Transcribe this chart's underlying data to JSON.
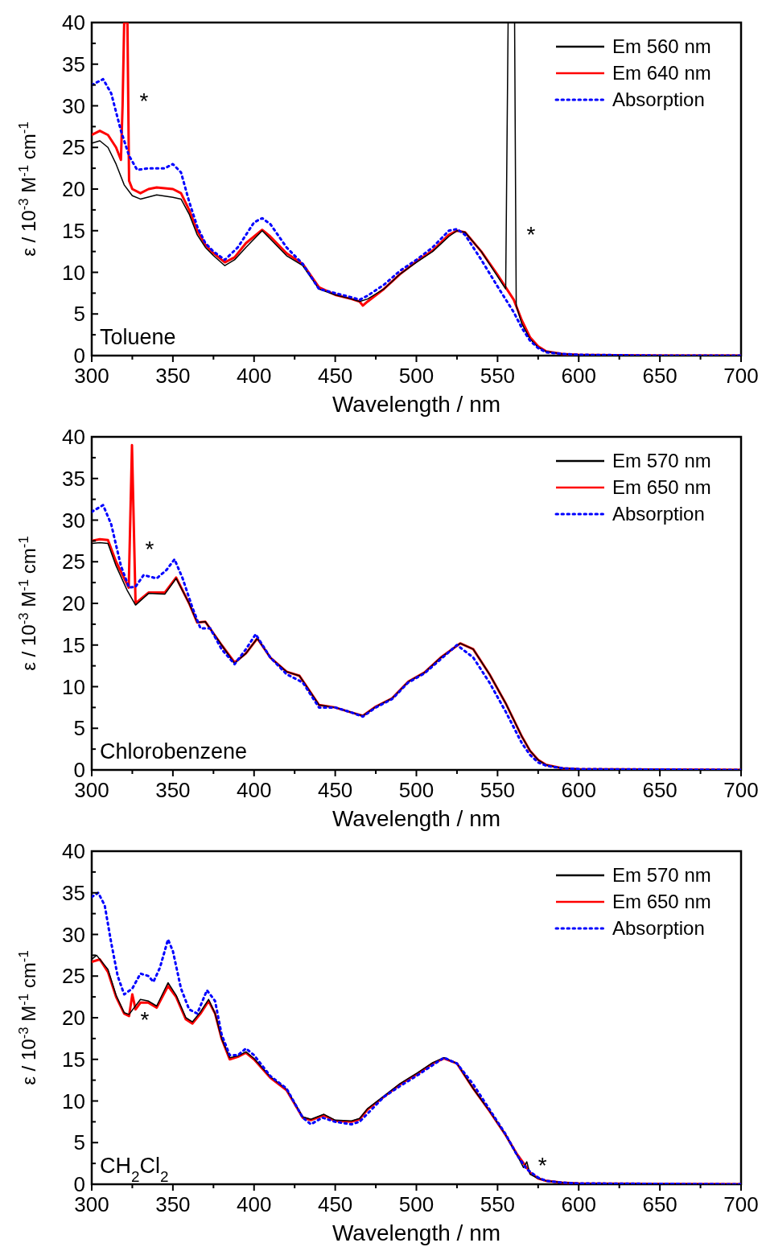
{
  "chart_data": [
    {
      "type": "line",
      "xlabel": "Wavelength / nm",
      "ylabel": "ε / 10$^{-3}$ M$^{-1}$ cm$^{-1}$",
      "xlim": [
        300,
        700
      ],
      "ylim": [
        0,
        40
      ],
      "xticks": [
        300,
        {
          "value": 325,
          "label": null
        },
        350,
        {
          "value": 375,
          "label": null
        },
        400,
        {
          "value": 425,
          "label": null
        },
        450,
        {
          "value": 475,
          "label": null
        },
        500,
        {
          "value": 525,
          "label": null
        },
        550,
        {
          "value": 575,
          "label": null
        },
        600,
        {
          "value": 625,
          "label": null
        },
        650,
        {
          "value": 675,
          "label": null
        },
        700
      ],
      "yticks": [
        0,
        {
          "value": 2.5,
          "label": null
        },
        5,
        {
          "value": 7.5,
          "label": null
        },
        10,
        {
          "value": 12.5,
          "label": null
        },
        15,
        {
          "value": 17.5,
          "label": null
        },
        20,
        {
          "value": 22.5,
          "label": null
        },
        25,
        {
          "value": 27.5,
          "label": null
        },
        30,
        {
          "value": 32.5,
          "label": null
        },
        35,
        {
          "value": 37.5,
          "label": null
        },
        40
      ],
      "legend": "top right",
      "marker": "none",
      "grid": false,
      "annotations": [
        "Toluene",
        {
          "text": "*",
          "x": 322.5,
          "y": 31
        },
        {
          "text": "*",
          "x": 561,
          "y": 15
        }
      ],
      "series": [
        {
          "name": "Em 560 nm",
          "color": "#000000",
          "line_style": "solid",
          "x": [
            300,
            305,
            310,
            315,
            320,
            325,
            330,
            340,
            350,
            355,
            360,
            365,
            370,
            375,
            382,
            388,
            395,
            405,
            410,
            420,
            430,
            440,
            450,
            460,
            465,
            470,
            480,
            490,
            500,
            510,
            520,
            525,
            530,
            540,
            550,
            555,
            556.5,
            560.5,
            561.5,
            565,
            570,
            575,
            580,
            590,
            600,
            650,
            700
          ],
          "values": [
            25.5,
            25.8,
            25,
            23,
            20.5,
            19.2,
            18.8,
            19.3,
            19,
            18.8,
            17,
            14.5,
            13,
            12,
            10.8,
            11.5,
            13,
            15,
            14,
            12,
            10.8,
            8,
            7.3,
            6.8,
            6.5,
            6.8,
            8,
            9.8,
            11.2,
            12.5,
            14.3,
            15,
            14.8,
            12.5,
            9.5,
            8,
            40,
            40,
            6,
            3.8,
            2,
            1,
            0.5,
            0.2,
            0.1,
            0,
            0
          ]
        },
        {
          "name": "Em 640 nm",
          "color": "#ff0000",
          "line_style": "solid",
          "x": [
            300,
            305,
            310,
            315,
            318,
            319,
            320,
            322,
            323,
            325,
            330,
            335,
            340,
            350,
            355,
            360,
            365,
            370,
            375,
            382,
            388,
            395,
            405,
            410,
            420,
            430,
            440,
            450,
            460,
            465,
            467,
            470,
            480,
            490,
            500,
            510,
            520,
            525,
            530,
            540,
            550,
            560,
            565,
            570,
            575,
            580,
            590,
            600,
            650,
            700
          ],
          "values": [
            26.5,
            27,
            26.5,
            25,
            23.5,
            30,
            40,
            40,
            21,
            20,
            19.5,
            20,
            20.2,
            20,
            19.5,
            17.5,
            15,
            13.3,
            12.3,
            11.2,
            11.8,
            13.5,
            15.1,
            14.3,
            12.3,
            11,
            8.2,
            7.3,
            6.8,
            6.5,
            6,
            6.5,
            8,
            9.8,
            11.3,
            12.6,
            14.5,
            15,
            14.8,
            12.5,
            9.7,
            6.7,
            4.2,
            2.2,
            1.1,
            0.5,
            0.2,
            0.1,
            0,
            0
          ]
        },
        {
          "name": "Absorption",
          "color": "#0000ff",
          "line_style": "dotted",
          "x": [
            300,
            307,
            312,
            318,
            323,
            328,
            335,
            345,
            350,
            355,
            360,
            365,
            370,
            375,
            382,
            390,
            400,
            405,
            410,
            420,
            430,
            440,
            450,
            460,
            465,
            470,
            480,
            490,
            500,
            510,
            520,
            525,
            530,
            540,
            550,
            560,
            565,
            570,
            575,
            580,
            590,
            600,
            650,
            700
          ],
          "values": [
            32.5,
            33.2,
            31.5,
            27,
            24,
            22.3,
            22.5,
            22.5,
            23,
            22,
            18.5,
            15.5,
            13.5,
            12.5,
            11.5,
            13,
            16,
            16.5,
            15.8,
            13,
            11,
            8,
            7.5,
            7,
            6.7,
            7.2,
            8.5,
            10.2,
            11.5,
            13,
            15,
            15.2,
            14.5,
            11.5,
            8.3,
            5.2,
            3.3,
            1.8,
            0.9,
            0.4,
            0.2,
            0.1,
            0,
            0
          ]
        }
      ]
    },
    {
      "type": "line",
      "xlabel": "Wavelength / nm",
      "ylabel": "ε / 10$^{-3}$ M$^{-1}$ cm$^{-1}$",
      "xlim": [
        300,
        700
      ],
      "ylim": [
        0,
        40
      ],
      "xticks": [
        300,
        {
          "value": 325,
          "label": null
        },
        350,
        {
          "value": 375,
          "label": null
        },
        400,
        {
          "value": 425,
          "label": null
        },
        450,
        {
          "value": 475,
          "label": null
        },
        500,
        {
          "value": 525,
          "label": null
        },
        550,
        {
          "value": 575,
          "label": null
        },
        600,
        {
          "value": 625,
          "label": null
        },
        650,
        {
          "value": 675,
          "label": null
        },
        700
      ],
      "yticks": [
        0,
        {
          "value": 2.5,
          "label": null
        },
        5,
        {
          "value": 7.5,
          "label": null
        },
        10,
        {
          "value": 12.5,
          "label": null
        },
        15,
        {
          "value": 17.5,
          "label": null
        },
        20,
        {
          "value": 22.5,
          "label": null
        },
        25,
        {
          "value": 27.5,
          "label": null
        },
        30,
        {
          "value": 32.5,
          "label": null
        },
        35,
        {
          "value": 37.5,
          "label": null
        },
        40
      ],
      "legend": "top right",
      "marker": "none",
      "grid": false,
      "annotations": [
        "Chlorobenzene",
        {
          "text": "*",
          "x": 326,
          "y": 27
        }
      ],
      "series": [
        {
          "name": "Em 570 nm",
          "color": "#000000",
          "line_style": "solid",
          "x": [
            300,
            305,
            310,
            315,
            322,
            327,
            335,
            345,
            352,
            360,
            365,
            370,
            380,
            388,
            395,
            402,
            410,
            420,
            428,
            440,
            450,
            460,
            467,
            475,
            485,
            495,
            505,
            515,
            527,
            535,
            545,
            555,
            565,
            570,
            575,
            580,
            590,
            600,
            700
          ],
          "values": [
            27.2,
            27.3,
            27.2,
            24.5,
            21.5,
            19.8,
            21.2,
            21.1,
            23,
            20,
            17.7,
            17.8,
            15,
            12.8,
            14,
            15.8,
            13.5,
            11.8,
            11.3,
            7.8,
            7.5,
            6.9,
            6.5,
            7.6,
            8.6,
            10.6,
            11.7,
            13.5,
            15.2,
            14.5,
            11.5,
            8,
            4,
            2.3,
            1.2,
            0.6,
            0.2,
            0.1,
            0
          ]
        },
        {
          "name": "Em 650 nm",
          "color": "#ff0000",
          "line_style": "solid",
          "x": [
            300,
            305,
            310,
            315,
            322.8,
            324.8,
            327,
            335,
            345,
            352,
            360,
            365,
            370,
            380,
            388,
            395,
            402,
            410,
            420,
            428,
            440,
            450,
            460,
            467,
            475,
            485,
            495,
            505,
            515,
            527,
            535,
            545,
            555,
            565,
            570,
            575,
            580,
            590,
            600,
            700
          ],
          "values": [
            27.5,
            27.7,
            27.6,
            25,
            21.9,
            39,
            20,
            21.3,
            21.3,
            23.1,
            20,
            17.7,
            17.8,
            15,
            12.9,
            14,
            15.8,
            13.5,
            11.8,
            11.3,
            7.8,
            7.5,
            6.9,
            6.5,
            7.6,
            8.6,
            10.6,
            11.7,
            13.5,
            15.2,
            14.5,
            11.5,
            8,
            4,
            2.3,
            1.2,
            0.6,
            0.2,
            0.1,
            0
          ]
        },
        {
          "name": "Absorption",
          "color": "#0000ff",
          "line_style": "dotted",
          "x": [
            300,
            307,
            312,
            318,
            323,
            327,
            332,
            340,
            346,
            351,
            356,
            362,
            367,
            373,
            380,
            388,
            395,
            401,
            410,
            420,
            430,
            440,
            450,
            460,
            467,
            475,
            485,
            495,
            505,
            515,
            525,
            535,
            545,
            555,
            565,
            570,
            575,
            580,
            590,
            600,
            700
          ],
          "values": [
            31,
            31.8,
            29.5,
            24.5,
            21.9,
            22,
            23.4,
            23,
            24,
            25.3,
            23,
            19.5,
            17,
            17,
            14.5,
            12.7,
            14.5,
            16.3,
            13.5,
            11.5,
            10.5,
            7.5,
            7.5,
            6.9,
            6.4,
            7.5,
            8.5,
            10.5,
            11.6,
            13.3,
            15,
            13.5,
            10.5,
            7,
            3.2,
            1.8,
            0.9,
            0.5,
            0.2,
            0.1,
            0
          ]
        }
      ]
    },
    {
      "type": "line",
      "xlabel": "Wavelength / nm",
      "ylabel": "ε / 10$^{-3}$ M$^{-1}$ cm$^{-1}$",
      "xlim": [
        300,
        700
      ],
      "ylim": [
        0,
        40
      ],
      "xticks": [
        300,
        {
          "value": 325,
          "label": null
        },
        350,
        {
          "value": 375,
          "label": null
        },
        400,
        {
          "value": 425,
          "label": null
        },
        450,
        {
          "value": 475,
          "label": null
        },
        500,
        {
          "value": 525,
          "label": null
        },
        550,
        {
          "value": 575,
          "label": null
        },
        600,
        {
          "value": 625,
          "label": null
        },
        650,
        {
          "value": 675,
          "label": null
        },
        700
      ],
      "yticks": [
        0,
        {
          "value": 2.5,
          "label": null
        },
        5,
        {
          "value": 7.5,
          "label": null
        },
        10,
        {
          "value": 12.5,
          "label": null
        },
        15,
        {
          "value": 17.5,
          "label": null
        },
        20,
        {
          "value": 22.5,
          "label": null
        },
        25,
        {
          "value": 27.5,
          "label": null
        },
        30,
        {
          "value": 32.5,
          "label": null
        },
        35,
        {
          "value": 37.5,
          "label": null
        },
        40
      ],
      "legend": "top right",
      "marker": "none",
      "grid": false,
      "annotations": [
        "CH$_{2}$Cl$_{2}$",
        {
          "text": "*",
          "x": 323,
          "y": 20.2
        },
        {
          "text": "*",
          "x": 568,
          "y": 2.7
        }
      ],
      "series": [
        {
          "name": "Em 570 nm",
          "color": "#000000",
          "line_style": "solid",
          "x": [
            300,
            303,
            310,
            315,
            320,
            323,
            330,
            335,
            340,
            347,
            352,
            358,
            362,
            367,
            372,
            376,
            380,
            385,
            390,
            395,
            400,
            410,
            420,
            430,
            435,
            443,
            450,
            460,
            465,
            470,
            480,
            490,
            500,
            510,
            517,
            525,
            535,
            545,
            555,
            562,
            566,
            568,
            570,
            575,
            580,
            590,
            600,
            700
          ],
          "values": [
            27,
            27.5,
            25.8,
            22.7,
            20.6,
            20.4,
            22.2,
            22,
            21.4,
            24.2,
            22.7,
            20,
            19.5,
            20.7,
            22.2,
            20.5,
            17.5,
            15.2,
            15.4,
            15.9,
            15.1,
            12.9,
            11.4,
            8.1,
            7.8,
            8.4,
            7.7,
            7.6,
            7.9,
            9.1,
            10.6,
            12.1,
            13.3,
            14.6,
            15.2,
            14.5,
            11.5,
            8.8,
            5.9,
            3.5,
            2,
            2.7,
            1.2,
            0.7,
            0.4,
            0.2,
            0.1,
            0
          ]
        },
        {
          "name": "Em 650 nm",
          "color": "#ff0000",
          "line_style": "solid",
          "x": [
            300,
            305,
            310,
            315,
            320,
            323,
            325,
            327,
            330,
            335,
            340,
            347,
            352,
            358,
            362,
            367,
            372,
            376,
            380,
            385,
            390,
            395,
            400,
            410,
            420,
            430,
            435,
            443,
            450,
            460,
            465,
            470,
            480,
            490,
            500,
            510,
            517,
            525,
            535,
            545,
            555,
            562,
            568,
            570,
            575,
            580,
            590,
            600,
            700
          ],
          "values": [
            26.7,
            27,
            25.5,
            22.5,
            20.5,
            20.2,
            22.8,
            21,
            21.8,
            21.8,
            21.2,
            23.8,
            22.5,
            19.8,
            19.3,
            20.5,
            22,
            20.5,
            17.5,
            15,
            15.3,
            15.8,
            15,
            12.8,
            11.3,
            8,
            7.7,
            8.3,
            7.6,
            7.5,
            7.8,
            9,
            10.5,
            12,
            13.2,
            14.5,
            15.1,
            14.5,
            11.5,
            8.8,
            5.9,
            3.6,
            2,
            1.4,
            0.7,
            0.4,
            0.2,
            0.1,
            0
          ]
        },
        {
          "name": "Absorption",
          "color": "#0000ff",
          "line_style": "dotted",
          "x": [
            300,
            304,
            308,
            312,
            316,
            320,
            325,
            330,
            335,
            338,
            342,
            347,
            350,
            355,
            360,
            365,
            371,
            376,
            380,
            385,
            390,
            395,
            400,
            410,
            420,
            430,
            435,
            442,
            450,
            460,
            465,
            470,
            480,
            490,
            500,
            510,
            517,
            525,
            535,
            545,
            555,
            562,
            568,
            575,
            580,
            590,
            600,
            700
          ],
          "values": [
            34.5,
            35,
            33.5,
            29,
            25,
            22.8,
            23.5,
            25.3,
            25,
            24.3,
            26,
            29.4,
            28,
            23.5,
            21,
            20.5,
            23.3,
            22,
            18,
            15.5,
            15.5,
            16.3,
            15.5,
            13,
            11.5,
            8,
            7.2,
            8,
            7.5,
            7.2,
            7.5,
            8.5,
            10.5,
            11.8,
            13,
            14.3,
            15.2,
            14.5,
            12,
            9,
            6,
            3.5,
            1.8,
            0.8,
            0.4,
            0.2,
            0.1,
            0
          ]
        }
      ]
    }
  ]
}
